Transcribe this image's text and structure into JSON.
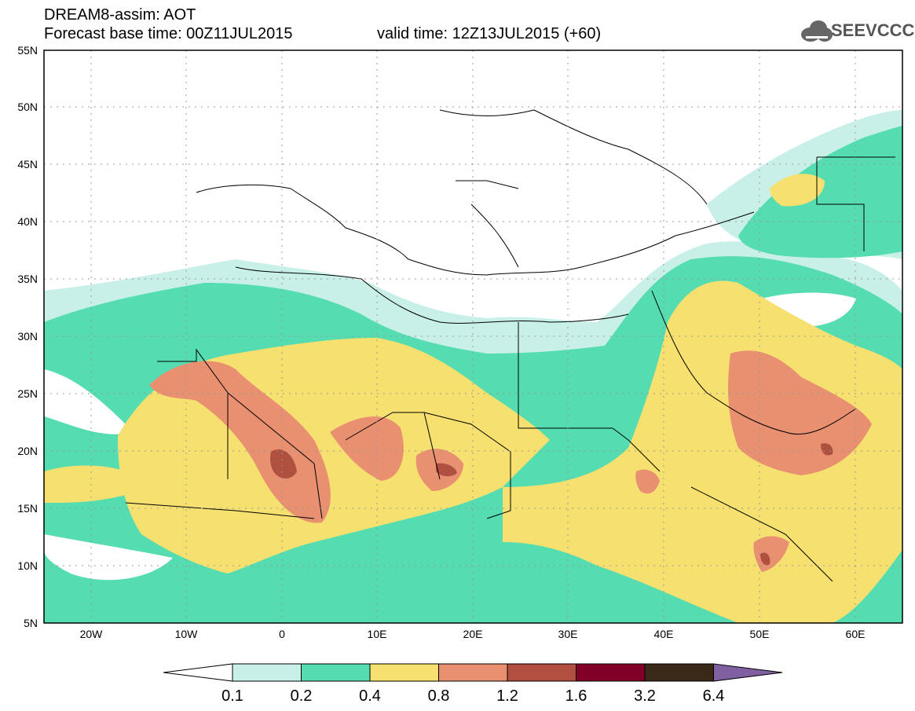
{
  "header": {
    "title": "DREAM8-assim: AOT",
    "base_time": "Forecast base time: 00Z11JUL2015",
    "valid_time": "valid time: 12Z13JUL2015 (+60)"
  },
  "logo": {
    "text": "SEEVCCC",
    "icon": "cloud-icon"
  },
  "axes": {
    "lat_labels": [
      "55N",
      "50N",
      "45N",
      "40N",
      "35N",
      "30N",
      "25N",
      "20N",
      "15N",
      "10N",
      "5N"
    ],
    "lon_labels": [
      "20W",
      "10W",
      "0",
      "10E",
      "20E",
      "30E",
      "40E",
      "50E",
      "60E"
    ]
  },
  "legend": {
    "labels": [
      "0.1",
      "0.2",
      "0.4",
      "0.8",
      "1.2",
      "1.6",
      "3.2",
      "6.4"
    ],
    "colors": [
      "#ffffff",
      "#c8f0e8",
      "#55dcb0",
      "#f5e070",
      "#e89070",
      "#b05040",
      "#800028",
      "#3a2818",
      "#8060a0"
    ]
  }
}
